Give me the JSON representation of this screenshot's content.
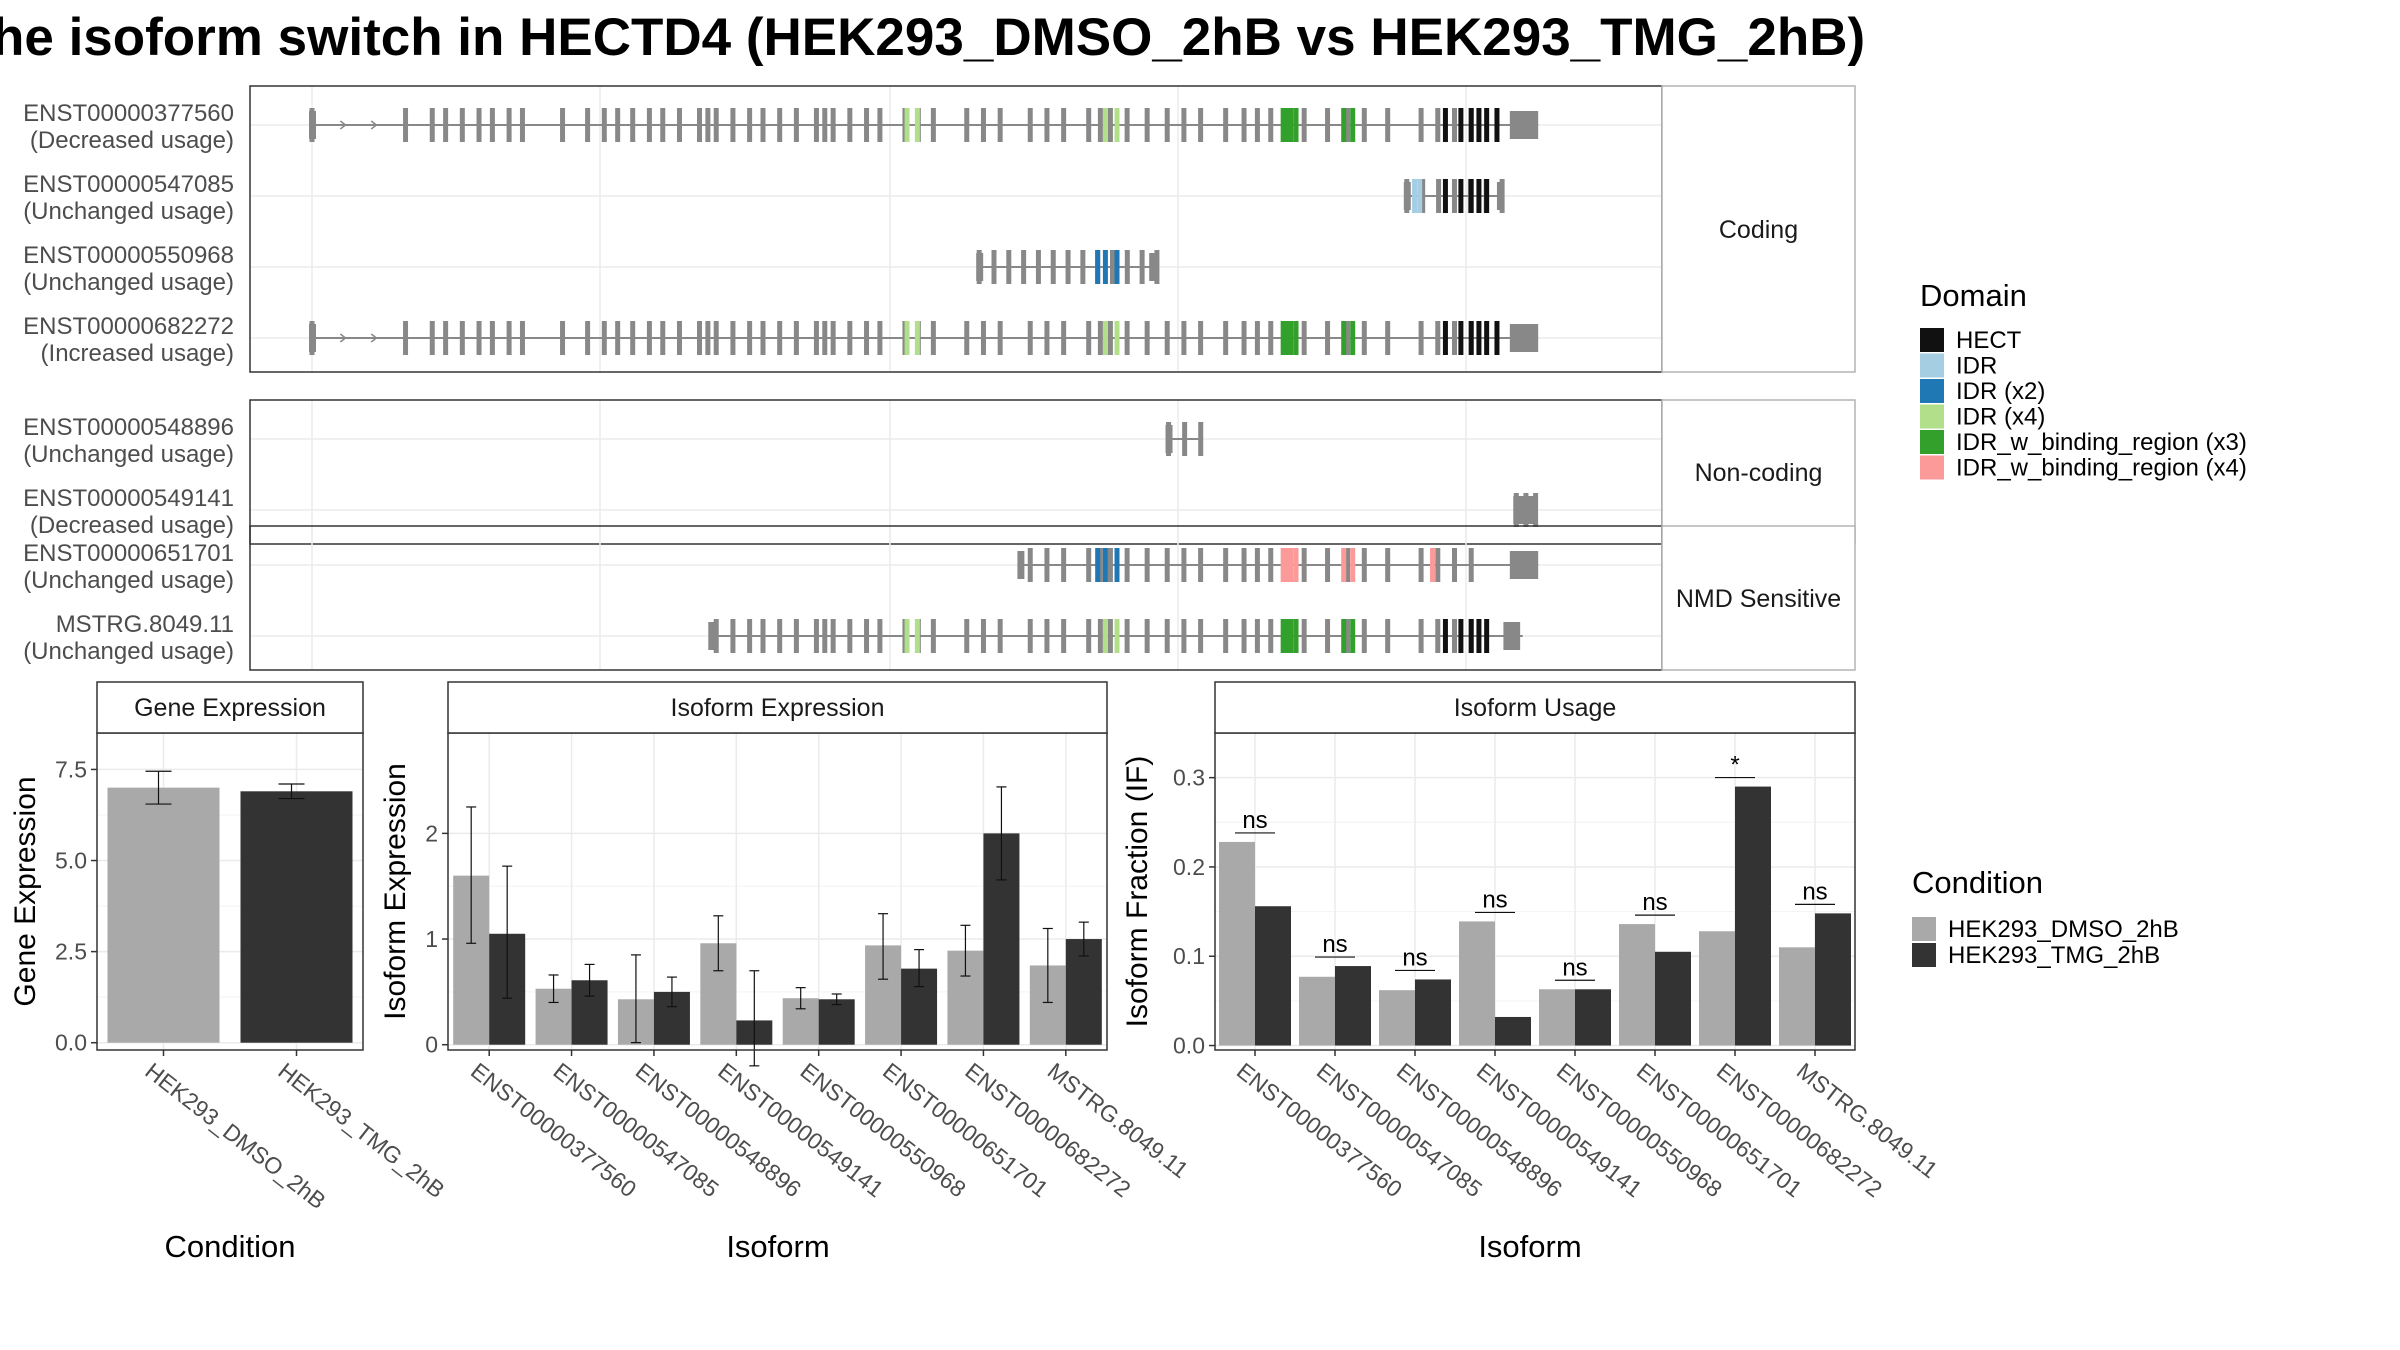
{
  "title": "he isoform switch in HECTD4 (HEK293_DMSO_2hB vs HEK293_TMG_2hB)",
  "colors": {
    "dmso": "#a9a9a9",
    "tmg": "#333333",
    "exon": "#888888",
    "intron": "#888888",
    "grid": "#ebebeb",
    "panel_border": "#333333",
    "strip_border": "#b3b3b3"
  },
  "domain_legend": {
    "title": "Domain",
    "items": [
      {
        "label": "HECT",
        "color": "#111111"
      },
      {
        "label": "IDR",
        "color": "#a6cee3"
      },
      {
        "label": "IDR (x2)",
        "color": "#1f78b4"
      },
      {
        "label": "IDR (x4)",
        "color": "#b2df8a"
      },
      {
        "label": "IDR_w_binding_region (x3)",
        "color": "#33a02c"
      },
      {
        "label": "IDR_w_binding_region (x4)",
        "color": "#fb9a99"
      }
    ]
  },
  "condition_legend": {
    "title": "Condition",
    "items": [
      {
        "label": "HEK293_DMSO_2hB",
        "color": "#a9a9a9"
      },
      {
        "label": "HEK293_TMG_2hB",
        "color": "#333333"
      }
    ]
  },
  "isoform_structure": {
    "xlim": [
      0,
      1000
    ],
    "exon_positions": [
      0,
      56,
      72,
      80,
      90,
      100,
      108,
      118,
      126,
      150,
      165,
      175,
      183,
      192,
      202,
      210,
      220,
      232,
      237,
      242,
      252,
      262,
      270,
      280,
      290,
      302,
      307,
      312,
      322,
      332,
      340,
      355,
      363,
      372,
      392,
      402,
      412,
      430,
      440,
      450,
      465,
      472,
      478,
      488,
      500,
      512,
      522,
      532,
      547,
      558,
      566,
      574,
      584,
      594,
      608,
      620,
      630,
      644,
      664,
      674,
      684,
      694
    ],
    "sections": [
      {
        "label": "Coding",
        "rows": [
          {
            "id": "ENST00000377560",
            "usage": "(Decreased usage)",
            "start": 0,
            "end": 952,
            "end_block": [
              930,
              952
            ],
            "domains": [
              {
                "at": 462,
                "d": 3
              },
              {
                "at": 470,
                "d": 3
              },
              {
                "at": 616,
                "d": 3
              },
              {
                "at": 625,
                "d": 3
              },
              {
                "at": 754,
                "d": 4
              },
              {
                "at": 757,
                "d": 4
              },
              {
                "at": 760,
                "d": 4
              },
              {
                "at": 764,
                "d": 4
              },
              {
                "at": 801,
                "d": 4
              },
              {
                "at": 808,
                "d": 4
              },
              {
                "at": 880,
                "d": 0
              },
              {
                "at": 892,
                "d": 0
              },
              {
                "at": 900,
                "d": 0
              },
              {
                "at": 906,
                "d": 0
              },
              {
                "at": 912,
                "d": 0
              },
              {
                "at": 920,
                "d": 0
              }
            ]
          },
          {
            "id": "ENST00000547085",
            "usage": "(Unchanged usage)",
            "start": 850,
            "end": 924,
            "end_block": [
              920,
              924
            ],
            "domains": [
              {
                "at": 856,
                "d": 1
              },
              {
                "at": 860,
                "d": 1
              },
              {
                "at": 880,
                "d": 0
              },
              {
                "at": 892,
                "d": 0
              },
              {
                "at": 900,
                "d": 0
              },
              {
                "at": 906,
                "d": 0
              },
              {
                "at": 912,
                "d": 0
              }
            ]
          },
          {
            "id": "ENST00000550968",
            "usage": "(Unchanged usage)",
            "start": 518,
            "end": 656,
            "end_block": [
              650,
              656
            ],
            "domains": [
              {
                "at": 610,
                "d": 2
              },
              {
                "at": 616,
                "d": 2
              },
              {
                "at": 625,
                "d": 2
              }
            ]
          },
          {
            "id": "ENST00000682272",
            "usage": "(Increased usage)",
            "start": 0,
            "end": 952,
            "end_block": [
              930,
              952
            ],
            "domains": [
              {
                "at": 462,
                "d": 3
              },
              {
                "at": 470,
                "d": 3
              },
              {
                "at": 616,
                "d": 3
              },
              {
                "at": 625,
                "d": 3
              },
              {
                "at": 754,
                "d": 4
              },
              {
                "at": 757,
                "d": 4
              },
              {
                "at": 760,
                "d": 4
              },
              {
                "at": 764,
                "d": 4
              },
              {
                "at": 801,
                "d": 4
              },
              {
                "at": 808,
                "d": 4
              },
              {
                "at": 880,
                "d": 0
              },
              {
                "at": 892,
                "d": 0
              },
              {
                "at": 900,
                "d": 0
              },
              {
                "at": 906,
                "d": 0
              },
              {
                "at": 912,
                "d": 0
              },
              {
                "at": 920,
                "d": 0
              }
            ]
          }
        ]
      },
      {
        "label": "Non-coding",
        "rows": [
          {
            "id": "ENST00000548896",
            "usage": "(Unchanged usage)",
            "start": 665,
            "end": 690,
            "end_block": null,
            "domains": []
          },
          {
            "id": "ENST00000549141",
            "usage": "(Decreased usage)",
            "start": 935,
            "end": 950,
            "end_block": [
              935,
              950
            ],
            "domains": []
          }
        ]
      },
      {
        "label": "NMD Sensitive",
        "rows": [
          {
            "id": "ENST00000651701",
            "usage": "(Unchanged usage)",
            "start": 550,
            "end": 952,
            "end_block": [
              930,
              952
            ],
            "domains": [
              {
                "at": 610,
                "d": 2
              },
              {
                "at": 616,
                "d": 2
              },
              {
                "at": 625,
                "d": 2
              },
              {
                "at": 754,
                "d": 5
              },
              {
                "at": 757,
                "d": 5
              },
              {
                "at": 760,
                "d": 5
              },
              {
                "at": 764,
                "d": 5
              },
              {
                "at": 801,
                "d": 5
              },
              {
                "at": 808,
                "d": 5
              },
              {
                "at": 870,
                "d": 5
              }
            ]
          },
          {
            "id": "MSTRG.8049.11",
            "usage": "(Unchanged usage)",
            "start": 310,
            "end": 940,
            "end_block": [
              925,
              938
            ],
            "domains": [
              {
                "at": 462,
                "d": 3
              },
              {
                "at": 470,
                "d": 3
              },
              {
                "at": 616,
                "d": 3
              },
              {
                "at": 625,
                "d": 3
              },
              {
                "at": 754,
                "d": 4
              },
              {
                "at": 757,
                "d": 4
              },
              {
                "at": 760,
                "d": 4
              },
              {
                "at": 764,
                "d": 4
              },
              {
                "at": 801,
                "d": 4
              },
              {
                "at": 808,
                "d": 4
              },
              {
                "at": 880,
                "d": 0
              },
              {
                "at": 892,
                "d": 0
              },
              {
                "at": 900,
                "d": 0
              },
              {
                "at": 906,
                "d": 0
              },
              {
                "at": 912,
                "d": 0
              }
            ]
          }
        ]
      }
    ]
  },
  "chart_data": [
    {
      "type": "bar",
      "strip": "Gene Expression",
      "ylabel": "Gene Expression",
      "xlabel": "Condition",
      "ylim": [
        -0.2,
        8.5
      ],
      "yticks": [
        0.0,
        2.5,
        5.0,
        7.5
      ],
      "ytick_labels": [
        "0.0",
        "2.5",
        "5.0",
        "7.5"
      ],
      "categories": [
        "HEK293_DMSO_2hB",
        "HEK293_TMG_2hB"
      ],
      "values": [
        7.0,
        6.9
      ],
      "errors": [
        [
          6.55,
          7.45
        ],
        [
          6.7,
          7.1
        ]
      ]
    },
    {
      "type": "bar",
      "strip": "Isoform Expression",
      "ylabel": "Isoform Expression",
      "xlabel": "Isoform",
      "ylim": [
        -0.05,
        2.95
      ],
      "yticks": [
        0,
        1,
        2
      ],
      "ytick_labels": [
        "0",
        "1",
        "2"
      ],
      "categories": [
        "ENST00000377560",
        "ENST00000547085",
        "ENST00000548896",
        "ENST00000549141",
        "ENST00000550968",
        "ENST00000651701",
        "ENST00000682272",
        "MSTRG.8049.11"
      ],
      "series": [
        {
          "name": "HEK293_DMSO_2hB",
          "values": [
            1.6,
            0.53,
            0.43,
            0.96,
            0.44,
            0.94,
            0.89,
            0.75
          ],
          "errors": [
            [
              0.96,
              2.25
            ],
            [
              0.4,
              0.66
            ],
            [
              0.02,
              0.85
            ],
            [
              0.7,
              1.22
            ],
            [
              0.34,
              0.54
            ],
            [
              0.62,
              1.24
            ],
            [
              0.65,
              1.13
            ],
            [
              0.4,
              1.1
            ]
          ]
        },
        {
          "name": "HEK293_TMG_2hB",
          "values": [
            1.05,
            0.61,
            0.5,
            0.23,
            0.43,
            0.72,
            2.0,
            1.0
          ],
          "errors": [
            [
              0.44,
              1.69
            ],
            [
              0.46,
              0.76
            ],
            [
              0.36,
              0.64
            ],
            [
              -0.2,
              0.7
            ],
            [
              0.38,
              0.48
            ],
            [
              0.55,
              0.9
            ],
            [
              1.56,
              2.44
            ],
            [
              0.84,
              1.16
            ]
          ]
        }
      ]
    },
    {
      "type": "bar",
      "strip": "Isoform Usage",
      "ylabel": "Isoform Fraction (IF)",
      "xlabel": "Isoform",
      "ylim": [
        -0.005,
        0.35
      ],
      "yticks": [
        0.0,
        0.1,
        0.2,
        0.3
      ],
      "ytick_labels": [
        "0.0",
        "0.1",
        "0.2",
        "0.3"
      ],
      "categories": [
        "ENST00000377560",
        "ENST00000547085",
        "ENST00000548896",
        "ENST00000549141",
        "ENST00000550968",
        "ENST00000651701",
        "ENST00000682272",
        "MSTRG.8049.11"
      ],
      "series": [
        {
          "name": "HEK293_DMSO_2hB",
          "values": [
            0.228,
            0.077,
            0.062,
            0.139,
            0.063,
            0.136,
            0.128,
            0.11
          ]
        },
        {
          "name": "HEK293_TMG_2hB",
          "values": [
            0.156,
            0.089,
            0.074,
            0.032,
            0.063,
            0.105,
            0.29,
            0.148
          ]
        }
      ],
      "significance": [
        "ns",
        "ns",
        "ns",
        "ns",
        "ns",
        "ns",
        "*",
        "ns"
      ]
    }
  ]
}
